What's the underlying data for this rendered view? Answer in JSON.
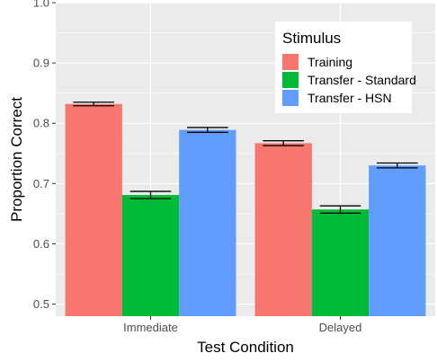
{
  "chart_data": {
    "type": "bar",
    "xlabel": "Test Condition",
    "ylabel": "Proportion Correct",
    "ylim": [
      0.48,
      1.0
    ],
    "yticks": [
      "0.5",
      "0.6",
      "0.7",
      "0.8",
      "0.9",
      "1.0"
    ],
    "categories": [
      "Immediate",
      "Delayed"
    ],
    "series": [
      {
        "name": "Training",
        "color": "#F8766D",
        "values": [
          0.832,
          0.767
        ],
        "error": [
          0.003,
          0.004
        ]
      },
      {
        "name": "Transfer - Standard",
        "color": "#00BA38",
        "values": [
          0.681,
          0.657
        ],
        "error": [
          0.006,
          0.006
        ]
      },
      {
        "name": "Transfer - HSN",
        "color": "#619CFF",
        "values": [
          0.789,
          0.73
        ],
        "error": [
          0.004,
          0.004
        ]
      }
    ],
    "legend": {
      "title": "Stimulus",
      "position": "top-right"
    },
    "grid": true,
    "panel_background": "#EBEBEB",
    "grid_color": "#FFFFFF"
  }
}
